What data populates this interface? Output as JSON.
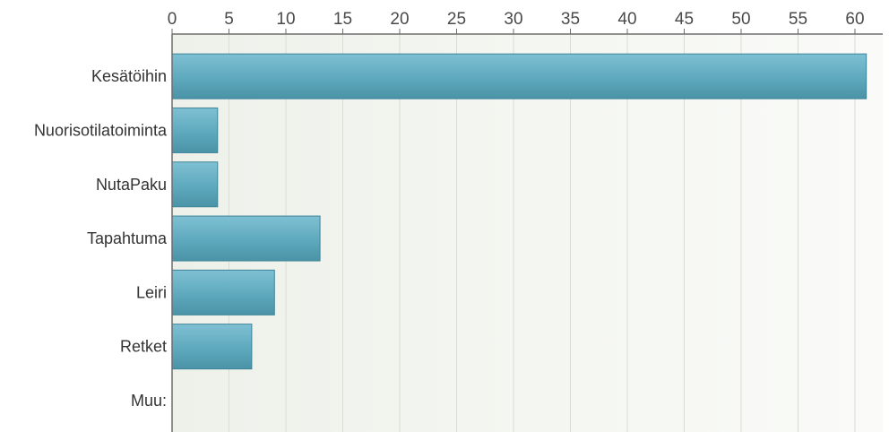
{
  "chart_data": {
    "type": "bar",
    "orientation": "horizontal",
    "categories": [
      "Kesätöihin",
      "Nuorisotilatoiminta",
      "NutaPaku",
      "Tapahtuma",
      "Leiri",
      "Retket",
      "Muu:"
    ],
    "values": [
      61,
      4,
      4,
      13,
      9,
      7,
      0
    ],
    "xlim": [
      0,
      62.5
    ],
    "xticks": [
      0,
      5,
      10,
      15,
      20,
      25,
      30,
      35,
      40,
      45,
      50,
      55,
      60
    ],
    "x_axis_position": "top",
    "grid": true,
    "title": "",
    "xlabel": "",
    "ylabel": "",
    "colors": {
      "bar_top": "#7fc0d3",
      "bar_mid": "#5ea9bd",
      "bar_bottom": "#4b93a7",
      "bar_edge": "#3f8499",
      "plot_bg": "#f3f5f0",
      "grid": "#d9ddd5",
      "axis": "#6e6e6e"
    }
  }
}
